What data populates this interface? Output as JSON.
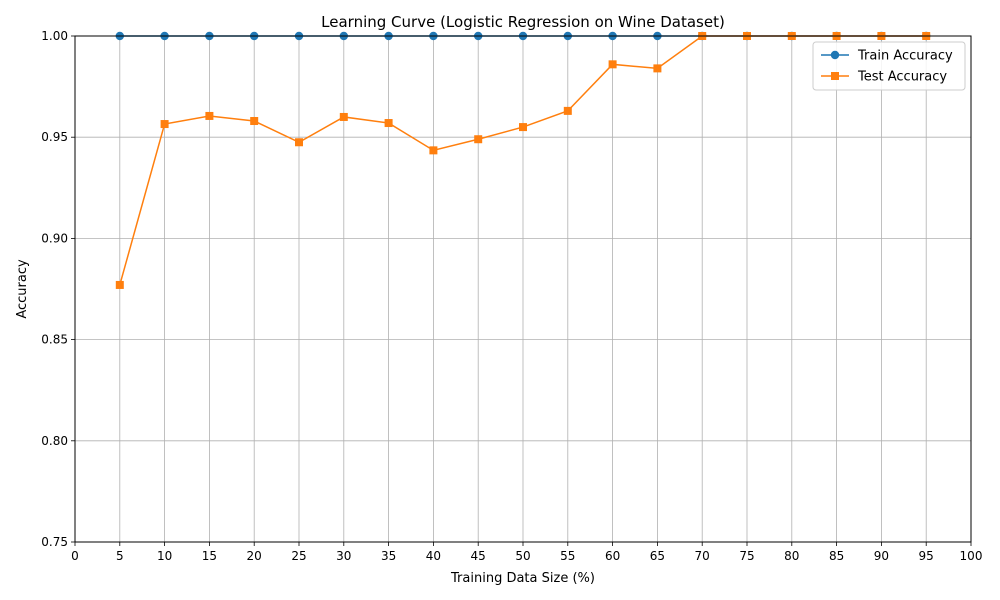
{
  "chart_data": {
    "type": "line",
    "title": "Learning Curve (Logistic Regression on Wine Dataset)",
    "xlabel": "Training Data Size (%)",
    "ylabel": "Accuracy",
    "xlim": [
      0,
      100
    ],
    "ylim": [
      0.75,
      1.0
    ],
    "xticks": [
      0,
      5,
      10,
      15,
      20,
      25,
      30,
      35,
      40,
      45,
      50,
      55,
      60,
      65,
      70,
      75,
      80,
      85,
      90,
      95,
      100
    ],
    "xtick_labels": [
      "0",
      "5",
      "10",
      "15",
      "20",
      "25",
      "30",
      "35",
      "40",
      "45",
      "50",
      "55",
      "60",
      "65",
      "70",
      "75",
      "80",
      "85",
      "90",
      "95",
      "100"
    ],
    "yticks": [
      0.75,
      0.8,
      0.85,
      0.9,
      0.95,
      1.0
    ],
    "ytick_labels": [
      "0.75",
      "0.80",
      "0.85",
      "0.90",
      "0.95",
      "1.00"
    ],
    "grid": true,
    "legend_position": "top-right",
    "x": [
      5,
      10,
      15,
      20,
      25,
      30,
      35,
      40,
      45,
      50,
      55,
      60,
      65,
      70,
      75,
      80,
      85,
      90,
      95
    ],
    "series": [
      {
        "name": "Train Accuracy",
        "color": "#1f77b4",
        "marker": "circle",
        "values": [
          1.0,
          1.0,
          1.0,
          1.0,
          1.0,
          1.0,
          1.0,
          1.0,
          1.0,
          1.0,
          1.0,
          1.0,
          1.0,
          1.0,
          1.0,
          1.0,
          1.0,
          1.0,
          1.0
        ]
      },
      {
        "name": "Test Accuracy",
        "color": "#ff7f0e",
        "marker": "square",
        "values": [
          0.877,
          0.9565,
          0.9605,
          0.958,
          0.9475,
          0.96,
          0.957,
          0.9435,
          0.949,
          0.955,
          0.963,
          0.986,
          0.984,
          1.0,
          1.0,
          1.0,
          1.0,
          1.0,
          1.0
        ]
      }
    ]
  }
}
